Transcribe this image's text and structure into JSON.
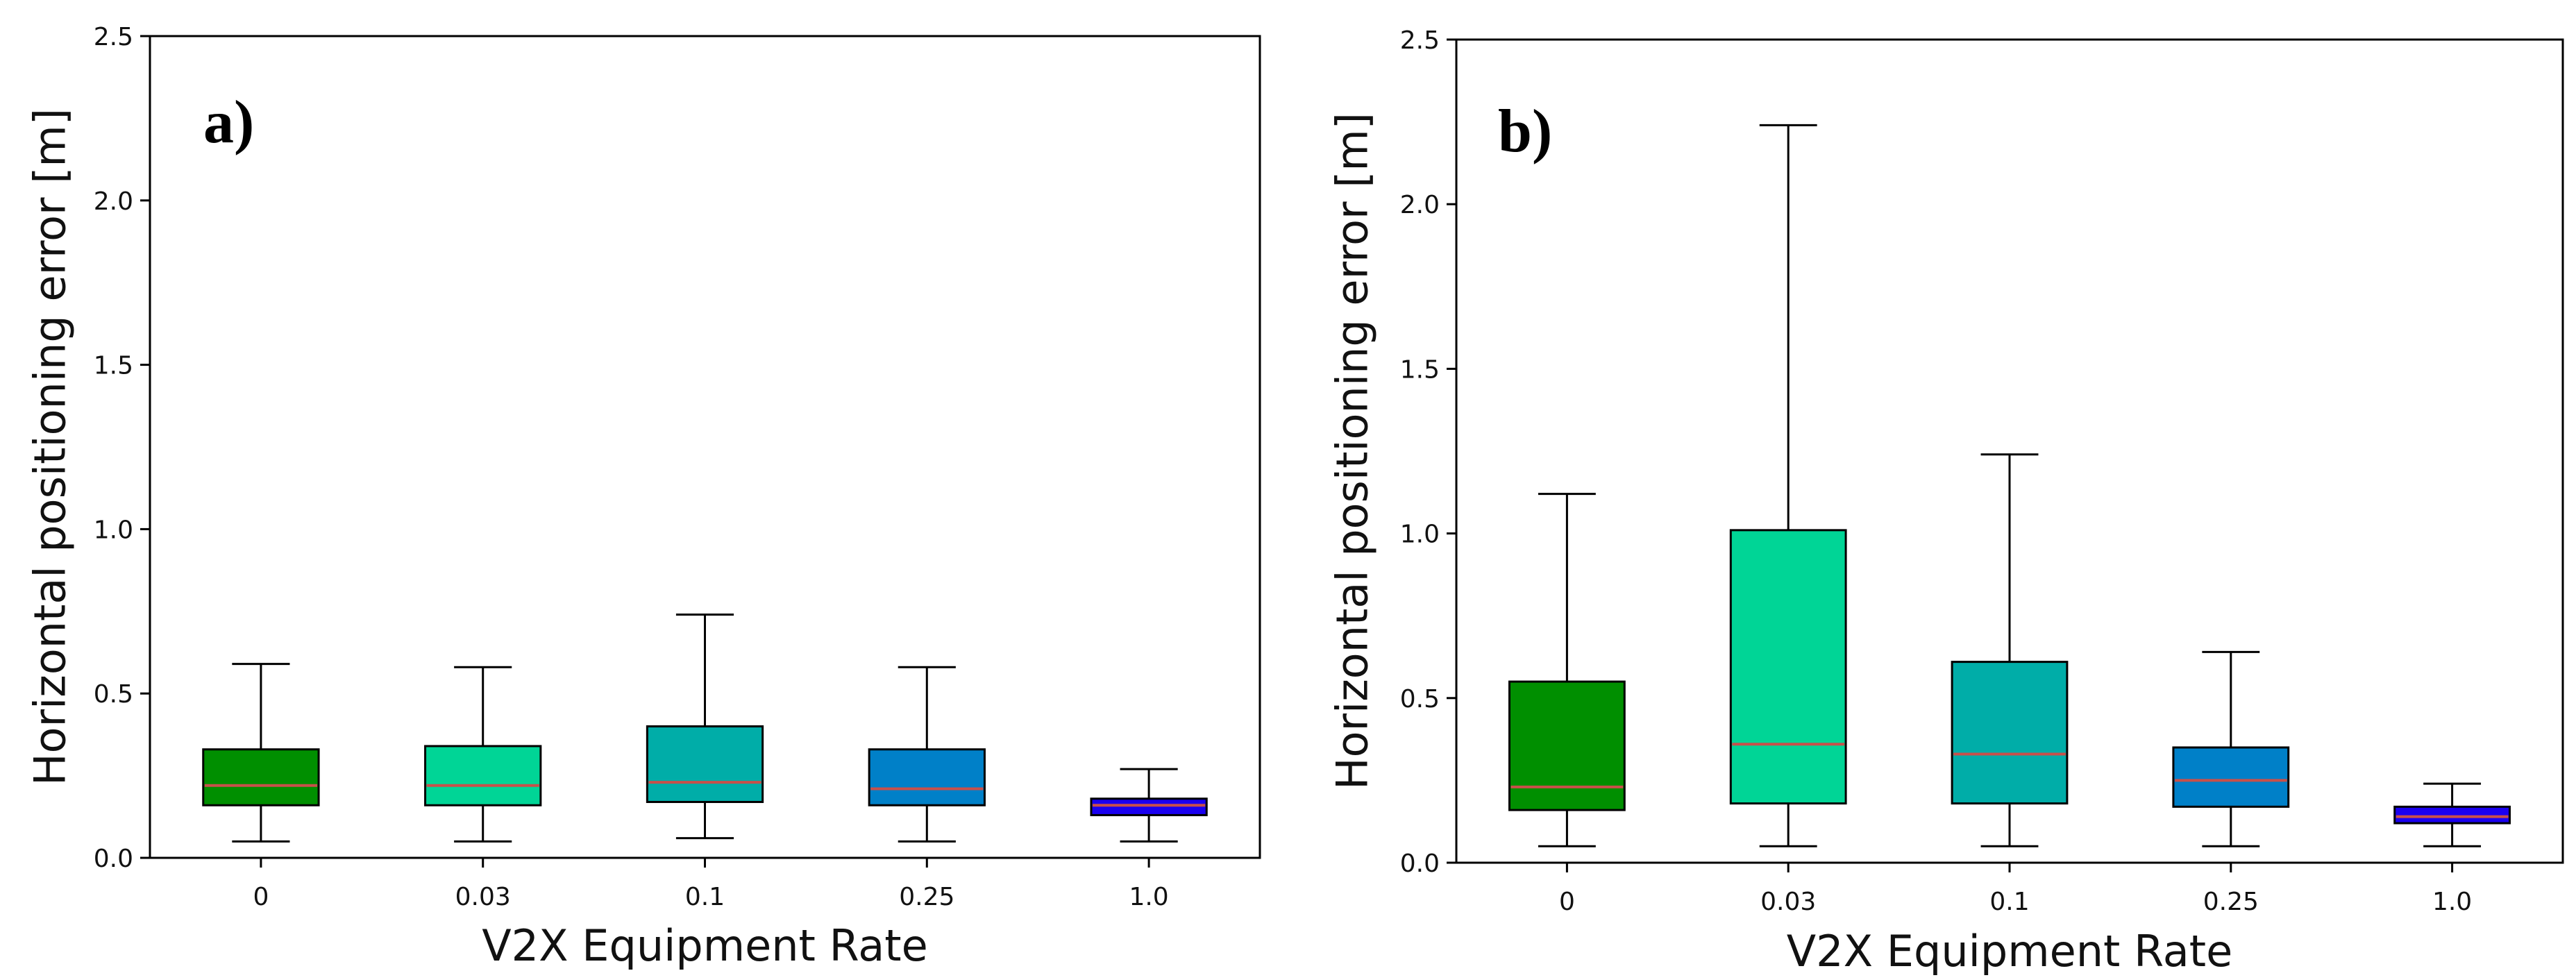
{
  "chart_data": [
    {
      "type": "box",
      "panel_label": "a)",
      "xlabel": "V2X Equipment Rate",
      "ylabel": "Horizontal positioning error [m]",
      "ylim": [
        0,
        2.5
      ],
      "yticks": [
        0.0,
        0.5,
        1.0,
        1.5,
        2.0,
        2.5
      ],
      "ytick_labels": [
        "0.0",
        "0.5",
        "1.0",
        "1.5",
        "2.0",
        "2.5"
      ],
      "categories": [
        "0",
        "0.03",
        "0.1",
        "0.25",
        "1.0"
      ],
      "colors": [
        "#008f00",
        "#00d596",
        "#00ada8",
        "#0080c8",
        "#1a00f0"
      ],
      "median_color": "#c8504a",
      "boxes": [
        {
          "whisker_low": 0.05,
          "q1": 0.16,
          "median": 0.22,
          "q3": 0.33,
          "whisker_high": 0.59
        },
        {
          "whisker_low": 0.05,
          "q1": 0.16,
          "median": 0.22,
          "q3": 0.34,
          "whisker_high": 0.58
        },
        {
          "whisker_low": 0.06,
          "q1": 0.17,
          "median": 0.23,
          "q3": 0.4,
          "whisker_high": 0.74
        },
        {
          "whisker_low": 0.05,
          "q1": 0.16,
          "median": 0.21,
          "q3": 0.33,
          "whisker_high": 0.58
        },
        {
          "whisker_low": 0.05,
          "q1": 0.13,
          "median": 0.16,
          "q3": 0.18,
          "whisker_high": 0.27
        }
      ]
    },
    {
      "type": "box",
      "panel_label": "b)",
      "xlabel": "V2X Equipment Rate",
      "ylabel": "Horizontal positioning error [m]",
      "ylim": [
        0,
        2.5
      ],
      "yticks": [
        0.0,
        0.5,
        1.0,
        1.5,
        2.0,
        2.5
      ],
      "ytick_labels": [
        "0.0",
        "0.5",
        "1.0",
        "1.5",
        "2.0",
        "2.5"
      ],
      "categories": [
        "0",
        "0.03",
        "0.1",
        "0.25",
        "1.0"
      ],
      "colors": [
        "#008f00",
        "#00d596",
        "#00ada8",
        "#0080c8",
        "#1a00f0"
      ],
      "median_color": "#c8504a",
      "boxes": [
        {
          "whisker_low": 0.05,
          "q1": 0.16,
          "median": 0.23,
          "q3": 0.55,
          "whisker_high": 1.12
        },
        {
          "whisker_low": 0.05,
          "q1": 0.18,
          "median": 0.36,
          "q3": 1.01,
          "whisker_high": 2.24
        },
        {
          "whisker_low": 0.05,
          "q1": 0.18,
          "median": 0.33,
          "q3": 0.61,
          "whisker_high": 1.24
        },
        {
          "whisker_low": 0.05,
          "q1": 0.17,
          "median": 0.25,
          "q3": 0.35,
          "whisker_high": 0.64
        },
        {
          "whisker_low": 0.05,
          "q1": 0.12,
          "median": 0.14,
          "q3": 0.17,
          "whisker_high": 0.24
        }
      ]
    }
  ]
}
